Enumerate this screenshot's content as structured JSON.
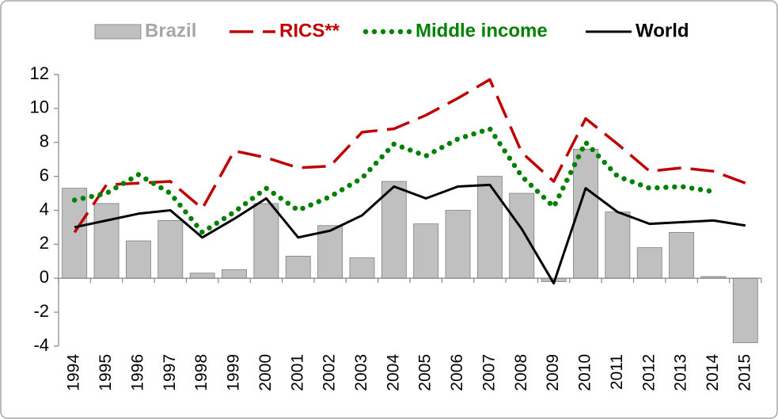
{
  "chart_data": {
    "type": "bar-line",
    "categories": [
      "1994",
      "1995",
      "1996",
      "1997",
      "1998",
      "1999",
      "2000",
      "2001",
      "2002",
      "2003",
      "2004",
      "2005",
      "2006",
      "2007",
      "2008",
      "2009",
      "2010",
      "2011",
      "2012",
      "2013",
      "2014",
      "2015"
    ],
    "series": [
      {
        "name": "Brazil",
        "color": "#c0c0c0",
        "type": "bar",
        "values": [
          5.3,
          4.4,
          2.2,
          3.4,
          0.3,
          0.5,
          4.4,
          1.3,
          3.1,
          1.2,
          5.7,
          3.2,
          4.0,
          6.0,
          5.0,
          -0.2,
          7.6,
          3.9,
          1.8,
          2.7,
          0.1,
          -3.8
        ]
      },
      {
        "name": "RICS**",
        "color": "#c00000",
        "type": "line",
        "style": "dashed",
        "values": [
          2.7,
          5.5,
          5.6,
          5.7,
          4.1,
          7.5,
          7.1,
          6.5,
          6.6,
          8.6,
          8.8,
          9.6,
          10.6,
          11.7,
          7.4,
          5.7,
          9.4,
          7.9,
          6.3,
          6.5,
          6.3,
          5.6
        ]
      },
      {
        "name": "Middle income",
        "color": "#008000",
        "type": "line",
        "style": "dotted",
        "values": [
          4.6,
          5.0,
          6.1,
          5.0,
          2.7,
          3.9,
          5.3,
          4.0,
          4.8,
          5.9,
          7.9,
          7.2,
          8.2,
          8.8,
          6.0,
          4.2,
          8.0,
          6.0,
          5.3,
          5.4,
          5.1,
          null
        ]
      },
      {
        "name": "World",
        "color": "#000000",
        "type": "line",
        "style": "solid",
        "values": [
          3.0,
          3.4,
          3.8,
          4.0,
          2.4,
          3.5,
          4.7,
          2.4,
          2.8,
          3.7,
          5.4,
          4.7,
          5.4,
          5.5,
          2.9,
          -0.3,
          5.3,
          3.9,
          3.2,
          3.3,
          3.4,
          3.1
        ]
      }
    ],
    "ylim": [
      -4,
      12
    ],
    "yticks": [
      -4,
      -2,
      0,
      2,
      4,
      6,
      8,
      10,
      12
    ],
    "legend": "top"
  }
}
